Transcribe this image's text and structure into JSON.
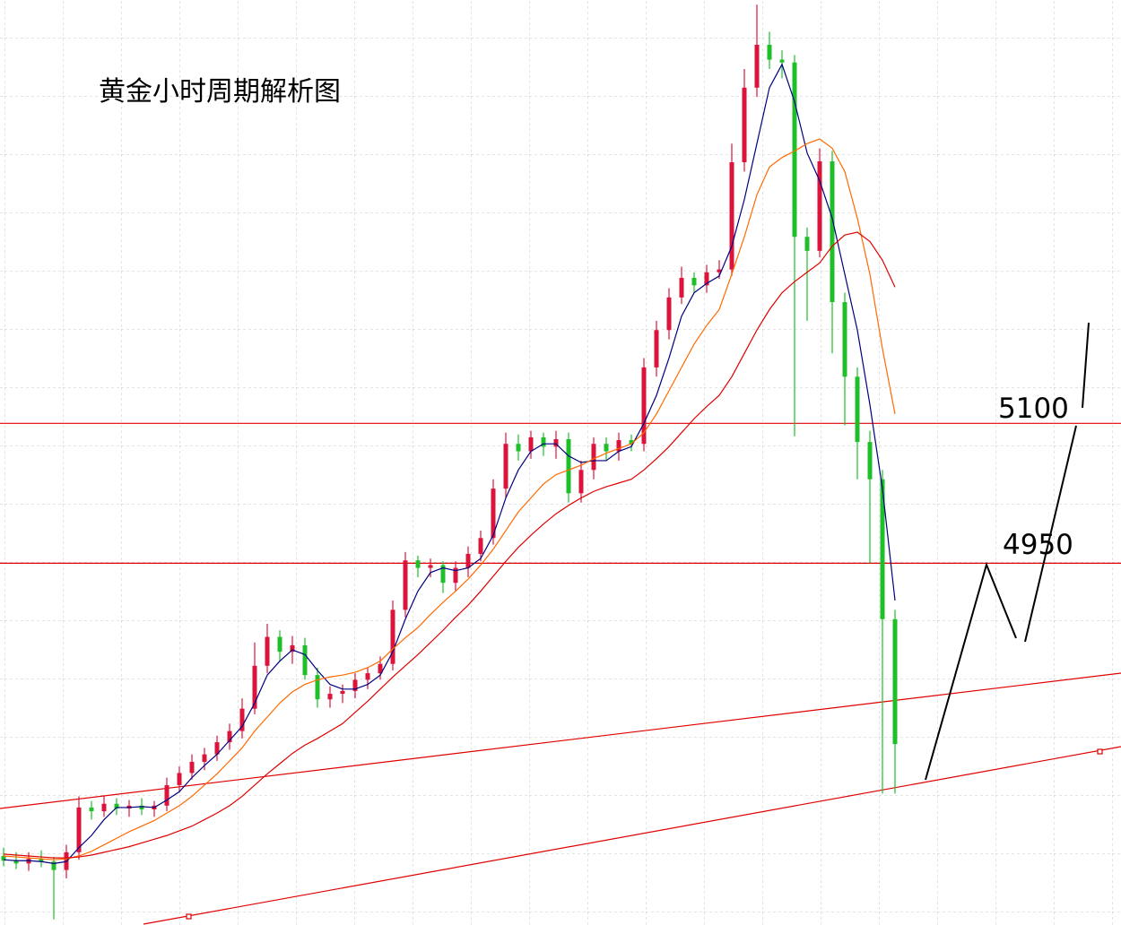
{
  "chart_data": {
    "type": "candlestick",
    "title": "黄金小时周期解析图",
    "ylim": [
      4562,
      5554
    ],
    "up_color": "#dc143c",
    "down_color": "#1fbf2a",
    "open": [
      4636,
      4631,
      4628,
      4633,
      4630,
      4621,
      4640,
      4688,
      4684,
      4692,
      4687,
      4690,
      4686,
      4690,
      4712,
      4725,
      4737,
      4745,
      4758,
      4770,
      4794,
      4840,
      4871,
      4855,
      4862,
      4830,
      4804,
      4810,
      4813,
      4825,
      4832,
      4842,
      4900,
      4953,
      4945,
      4948,
      4929,
      4945,
      4960,
      4977,
      5030,
      5078,
      5070,
      5085,
      5075,
      5083,
      5025,
      5050,
      5078,
      5070,
      5082,
      5078,
      5160,
      5200,
      5235,
      5256,
      5248,
      5262,
      5265,
      5380,
      5460,
      5506,
      5490,
      5487,
      5300,
      5285,
      5381,
      5230,
      5150,
      5080,
      5040,
      4890
    ],
    "high": [
      4645,
      4640,
      4640,
      4642,
      4635,
      4648,
      4700,
      4695,
      4700,
      4698,
      4696,
      4698,
      4695,
      4720,
      4732,
      4745,
      4752,
      4765,
      4778,
      4805,
      4865,
      4885,
      4878,
      4872,
      4870,
      4838,
      4818,
      4820,
      4832,
      4838,
      4850,
      4910,
      4962,
      4958,
      4955,
      4952,
      4952,
      4968,
      4985,
      5040,
      5090,
      5088,
      5092,
      5090,
      5092,
      5090,
      5060,
      5085,
      5085,
      5090,
      5088,
      5170,
      5210,
      5245,
      5268,
      5262,
      5270,
      5275,
      5400,
      5480,
      5549,
      5520,
      5500,
      5495,
      5310,
      5395,
      5392,
      5240,
      5160,
      5092,
      5050,
      4900
    ],
    "low": [
      4625,
      4622,
      4620,
      4624,
      4568,
      4612,
      4632,
      4675,
      4678,
      4680,
      4678,
      4680,
      4678,
      4684,
      4705,
      4718,
      4728,
      4738,
      4750,
      4762,
      4788,
      4832,
      4845,
      4842,
      4825,
      4795,
      4795,
      4800,
      4805,
      4815,
      4825,
      4835,
      4892,
      4935,
      4935,
      4918,
      4920,
      4935,
      4952,
      4970,
      5020,
      5060,
      5062,
      5065,
      5062,
      5015,
      5015,
      5040,
      5060,
      5060,
      5070,
      5070,
      5150,
      5190,
      5228,
      5240,
      5240,
      5255,
      5258,
      5370,
      5450,
      5480,
      5470,
      5086,
      5210,
      5278,
      5175,
      5098,
      5040,
      4950,
      4703,
      4703
    ],
    "close": [
      4631,
      4628,
      4633,
      4630,
      4621,
      4640,
      4688,
      4684,
      4692,
      4687,
      4690,
      4686,
      4690,
      4712,
      4725,
      4737,
      4745,
      4758,
      4770,
      4794,
      4840,
      4871,
      4855,
      4862,
      4830,
      4804,
      4810,
      4813,
      4825,
      4832,
      4842,
      4900,
      4953,
      4945,
      4948,
      4929,
      4945,
      4960,
      4977,
      5030,
      5078,
      5070,
      5085,
      5075,
      5083,
      5025,
      5050,
      5078,
      5070,
      5082,
      5078,
      5160,
      5200,
      5235,
      5256,
      5248,
      5262,
      5265,
      5380,
      5460,
      5506,
      5490,
      5487,
      5300,
      5285,
      5381,
      5230,
      5150,
      5080,
      5040,
      4890,
      4756
    ],
    "series": [
      {
        "color": "#000080",
        "values": [
          4632,
          4631,
          4631,
          4630,
          4628,
          4630,
          4645,
          4658,
          4675,
          4688,
          4688,
          4689,
          4688,
          4696,
          4705,
          4720,
          4733,
          4745,
          4760,
          4775,
          4800,
          4830,
          4845,
          4857,
          4852,
          4835,
          4820,
          4815,
          4815,
          4820,
          4830,
          4855,
          4890,
          4920,
          4940,
          4945,
          4942,
          4945,
          4955,
          4980,
          5020,
          5050,
          5070,
          5078,
          5078,
          5065,
          5058,
          5060,
          5060,
          5070,
          5075,
          5100,
          5130,
          5170,
          5215,
          5240,
          5250,
          5258,
          5290,
          5340,
          5400,
          5460,
          5485,
          5445,
          5390,
          5360,
          5320,
          5260,
          5200,
          5120,
          5030,
          4910
        ]
      },
      {
        "color": "#ff6a00",
        "values": [
          4636,
          4635,
          4634,
          4633,
          4632,
          4633,
          4636,
          4641,
          4648,
          4655,
          4662,
          4668,
          4674,
          4682,
          4690,
          4700,
          4712,
          4724,
          4738,
          4752,
          4770,
          4785,
          4800,
          4812,
          4820,
          4825,
          4828,
          4830,
          4833,
          4838,
          4845,
          4858,
          4870,
          4881,
          4895,
          4908,
          4920,
          4933,
          4948,
          4965,
          4985,
          5005,
          5020,
          5035,
          5045,
          5050,
          5055,
          5062,
          5068,
          5073,
          5078,
          5090,
          5110,
          5135,
          5160,
          5185,
          5205,
          5222,
          5260,
          5300,
          5345,
          5375,
          5385,
          5392,
          5400,
          5405,
          5395,
          5370,
          5320,
          5260,
          5180,
          5110
        ]
      },
      {
        "color": "#e00000",
        "values": [
          4638,
          4637,
          4636,
          4635,
          4634,
          4634,
          4635,
          4637,
          4640,
          4643,
          4646,
          4650,
          4654,
          4658,
          4663,
          4668,
          4675,
          4682,
          4690,
          4700,
          4712,
          4724,
          4735,
          4746,
          4755,
          4762,
          4770,
          4778,
          4790,
          4802,
          4815,
          4828,
          4840,
          4852,
          4865,
          4878,
          4892,
          4905,
          4920,
          4936,
          4952,
          4967,
          4980,
          4992,
          5003,
          5012,
          5020,
          5027,
          5032,
          5036,
          5040,
          5050,
          5062,
          5075,
          5090,
          5105,
          5118,
          5130,
          5150,
          5175,
          5200,
          5222,
          5240,
          5252,
          5262,
          5272,
          5290,
          5302,
          5305,
          5295,
          5275,
          5246
        ]
      }
    ],
    "levels": [
      5100,
      4950
    ],
    "level_color": "#e00000"
  }
}
